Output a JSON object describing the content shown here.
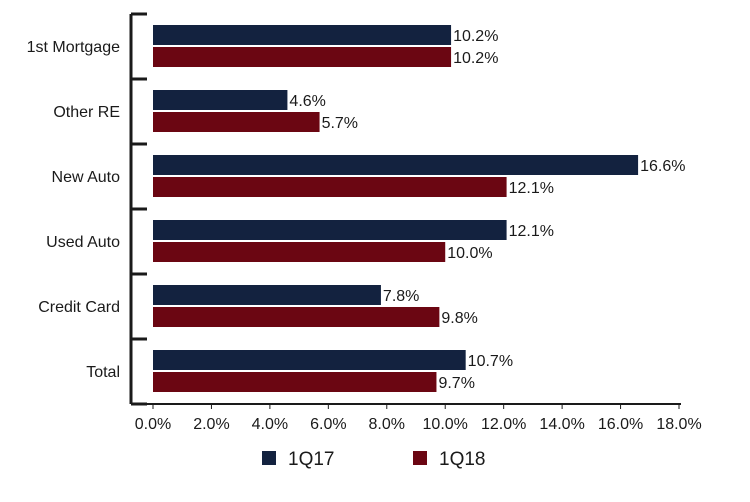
{
  "chart_data": {
    "type": "bar",
    "orientation": "horizontal",
    "categories": [
      "1st Mortgage",
      "Other RE",
      "New Auto",
      "Used Auto",
      "Credit Card",
      "Total"
    ],
    "series": [
      {
        "name": "1Q17",
        "color": "#13223f",
        "values": [
          10.2,
          4.6,
          16.6,
          12.1,
          7.8,
          10.7
        ],
        "labels": [
          "10.2%",
          "4.6%",
          "16.6%",
          "12.1%",
          "7.8%",
          "10.7%"
        ]
      },
      {
        "name": "1Q18",
        "color": "#6b0612",
        "values": [
          10.2,
          5.7,
          12.1,
          10.0,
          9.8,
          9.7
        ],
        "labels": [
          "10.2%",
          "5.7%",
          "12.1%",
          "10.0%",
          "9.8%",
          "9.7%"
        ]
      }
    ],
    "xlim": [
      0,
      18
    ],
    "xticks": [
      "0.0%",
      "2.0%",
      "4.0%",
      "6.0%",
      "8.0%",
      "10.0%",
      "12.0%",
      "14.0%",
      "16.0%",
      "18.0%"
    ],
    "title": "",
    "xlabel": "",
    "ylabel": "",
    "grid": false,
    "legend": "bottom"
  }
}
